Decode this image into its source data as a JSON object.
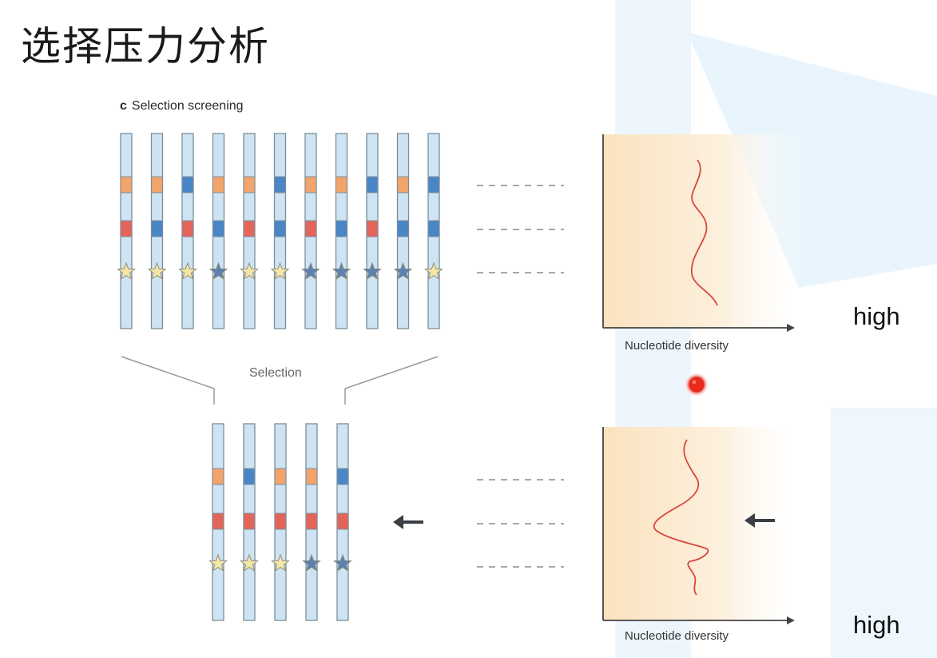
{
  "title": "选择压力分析",
  "panel": {
    "letter": "c",
    "name": "Selection screening"
  },
  "selection_label": "Selection",
  "axis_label_top": "Nucleotide diversity",
  "axis_label_bottom": "Nucleotide diversity",
  "high_top": "high",
  "high_bottom": "high",
  "colors": {
    "chromosome_fill": "#cfe4f3",
    "chromosome_stroke": "#7b8d9b",
    "orange": "#f2a46b",
    "blue": "#4a86c5",
    "red": "#e3655a",
    "star_yellow": "#f4e6a4",
    "star_blue": "#5c80b2",
    "plot_line": "#d9463c",
    "plot_bg": "#fbe6c8"
  },
  "icons": {
    "arrow": "left-arrow-icon",
    "marker": "red-dot-icon",
    "star": "star-icon"
  },
  "top_group": {
    "chromosomes": [
      {
        "locus1": "orange",
        "locus2": "red",
        "star": "yellow"
      },
      {
        "locus1": "orange",
        "locus2": "blue",
        "star": "yellow"
      },
      {
        "locus1": "blue",
        "locus2": "red",
        "star": "yellow"
      },
      {
        "locus1": "orange",
        "locus2": "blue",
        "star": "blue"
      },
      {
        "locus1": "orange",
        "locus2": "red",
        "star": "yellow"
      },
      {
        "locus1": "blue",
        "locus2": "blue",
        "star": "yellow"
      },
      {
        "locus1": "orange",
        "locus2": "red",
        "star": "blue"
      },
      {
        "locus1": "orange",
        "locus2": "blue",
        "star": "blue"
      },
      {
        "locus1": "blue",
        "locus2": "red",
        "star": "blue"
      },
      {
        "locus1": "orange",
        "locus2": "blue",
        "star": "blue"
      },
      {
        "locus1": "blue",
        "locus2": "blue",
        "star": "yellow"
      }
    ]
  },
  "bottom_group": {
    "chromosomes": [
      {
        "locus1": "orange",
        "locus2": "red",
        "star": "yellow"
      },
      {
        "locus1": "blue",
        "locus2": "red",
        "star": "yellow"
      },
      {
        "locus1": "orange",
        "locus2": "red",
        "star": "yellow"
      },
      {
        "locus1": "orange",
        "locus2": "red",
        "star": "blue"
      },
      {
        "locus1": "blue",
        "locus2": "red",
        "star": "blue"
      }
    ]
  }
}
